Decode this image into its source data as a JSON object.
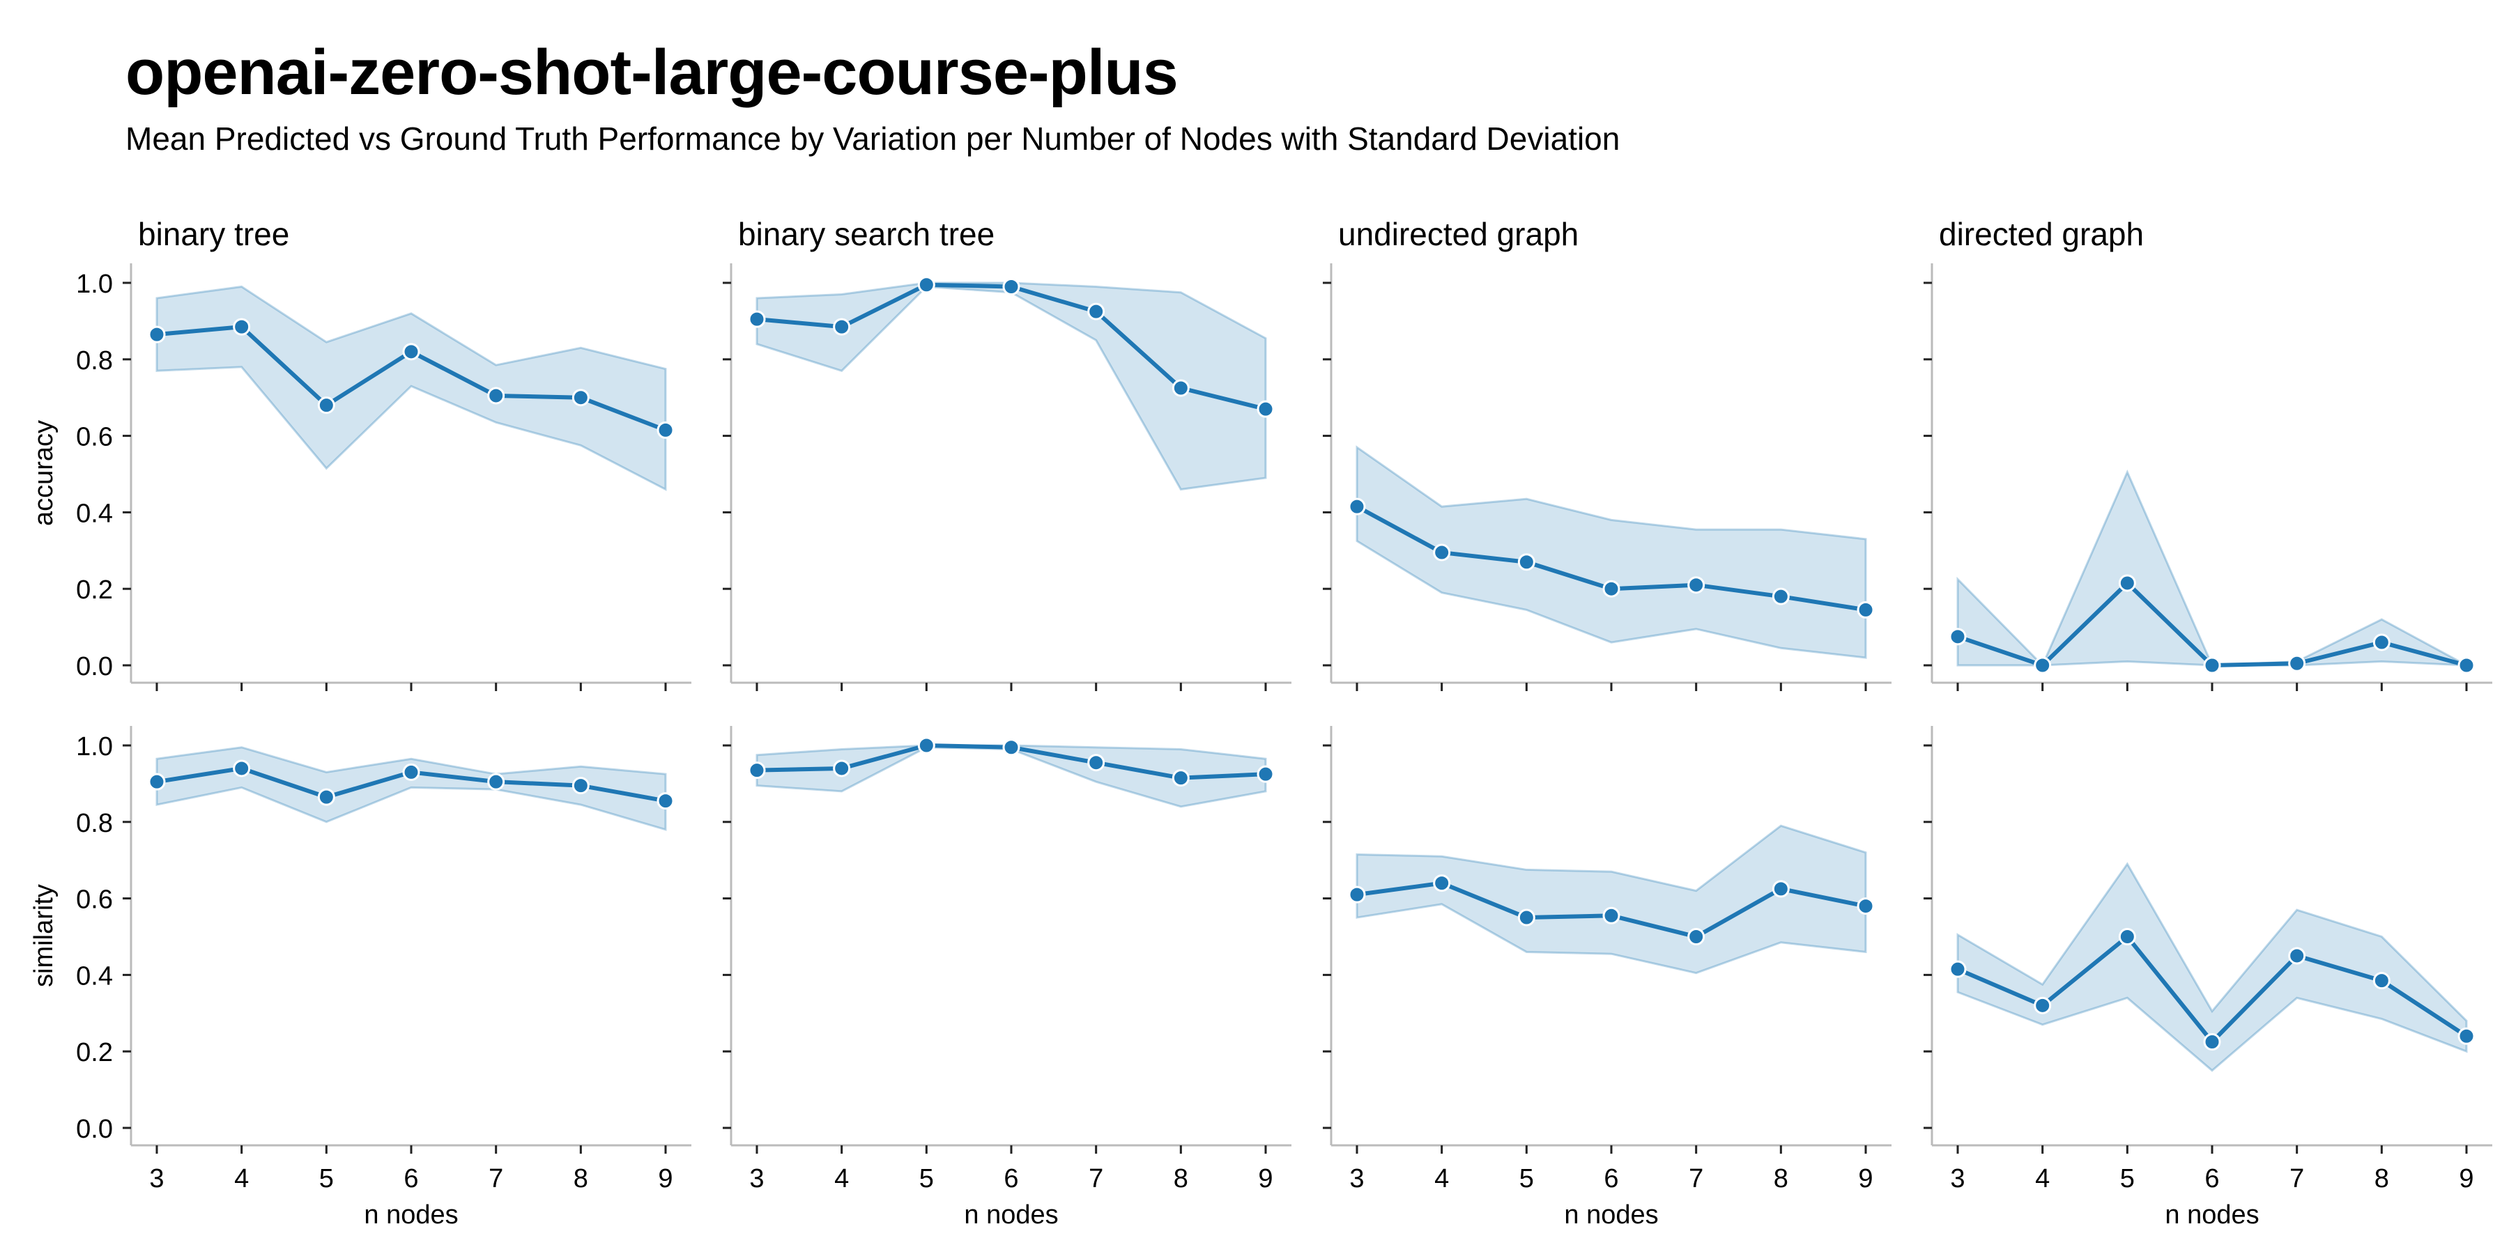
{
  "title": "openai-zero-shot-large-course-plus",
  "subtitle": "Mean Predicted vs Ground Truth Performance by Variation per Number of Nodes with Standard Deviation",
  "colors": {
    "line": "#1f77b4",
    "band": "#1f77b4",
    "axis": "#bbbbbb"
  },
  "chart_data": {
    "type": "line",
    "xlabel": "n nodes",
    "x": [
      3,
      4,
      5,
      6,
      7,
      8,
      9
    ],
    "xticks": [
      "3",
      "4",
      "5",
      "6",
      "7",
      "8",
      "9"
    ],
    "ylim": [
      0,
      1
    ],
    "yticks": [
      "0.0",
      "0.2",
      "0.4",
      "0.6",
      "0.8",
      "1.0"
    ],
    "rows": [
      "accuracy",
      "similarity"
    ],
    "columns": [
      "binary tree",
      "binary search tree",
      "undirected graph",
      "directed graph"
    ],
    "grid": false,
    "facets": [
      {
        "column": "binary tree",
        "metric": "accuracy",
        "mean": [
          0.865,
          0.885,
          0.68,
          0.82,
          0.705,
          0.7,
          0.615
        ],
        "lower": [
          0.77,
          0.78,
          0.515,
          0.73,
          0.635,
          0.575,
          0.46
        ],
        "upper": [
          0.96,
          0.99,
          0.845,
          0.92,
          0.785,
          0.83,
          0.775
        ]
      },
      {
        "column": "binary search tree",
        "metric": "accuracy",
        "mean": [
          0.905,
          0.885,
          0.995,
          0.99,
          0.925,
          0.725,
          0.67
        ],
        "lower": [
          0.84,
          0.77,
          0.99,
          0.975,
          0.85,
          0.46,
          0.49
        ],
        "upper": [
          0.96,
          0.97,
          1.0,
          1.0,
          0.99,
          0.975,
          0.855
        ]
      },
      {
        "column": "undirected graph",
        "metric": "accuracy",
        "mean": [
          0.415,
          0.295,
          0.27,
          0.2,
          0.21,
          0.18,
          0.145
        ],
        "lower": [
          0.325,
          0.19,
          0.145,
          0.06,
          0.095,
          0.045,
          0.02
        ],
        "upper": [
          0.57,
          0.415,
          0.435,
          0.38,
          0.355,
          0.355,
          0.33
        ]
      },
      {
        "column": "directed graph",
        "metric": "accuracy",
        "mean": [
          0.075,
          0.0,
          0.215,
          0.0,
          0.005,
          0.06,
          0.0
        ],
        "lower": [
          0.0,
          0.0,
          0.01,
          0.0,
          0.0,
          0.01,
          0.0
        ],
        "upper": [
          0.225,
          0.0,
          0.505,
          0.0,
          0.01,
          0.12,
          0.0
        ]
      },
      {
        "column": "binary tree",
        "metric": "similarity",
        "mean": [
          0.905,
          0.94,
          0.865,
          0.93,
          0.905,
          0.895,
          0.855
        ],
        "lower": [
          0.845,
          0.89,
          0.8,
          0.89,
          0.885,
          0.845,
          0.78
        ],
        "upper": [
          0.965,
          0.995,
          0.93,
          0.965,
          0.925,
          0.945,
          0.925
        ]
      },
      {
        "column": "binary search tree",
        "metric": "similarity",
        "mean": [
          0.935,
          0.94,
          1.0,
          0.995,
          0.955,
          0.915,
          0.925
        ],
        "lower": [
          0.895,
          0.88,
          0.995,
          0.99,
          0.905,
          0.84,
          0.88
        ],
        "upper": [
          0.975,
          0.99,
          1.0,
          1.0,
          0.995,
          0.99,
          0.965
        ]
      },
      {
        "column": "undirected graph",
        "metric": "similarity",
        "mean": [
          0.61,
          0.64,
          0.55,
          0.555,
          0.5,
          0.625,
          0.58
        ],
        "lower": [
          0.55,
          0.585,
          0.46,
          0.455,
          0.405,
          0.485,
          0.46
        ],
        "upper": [
          0.715,
          0.71,
          0.675,
          0.67,
          0.62,
          0.79,
          0.72
        ]
      },
      {
        "column": "directed graph",
        "metric": "similarity",
        "mean": [
          0.415,
          0.32,
          0.5,
          0.225,
          0.45,
          0.385,
          0.24
        ],
        "lower": [
          0.355,
          0.27,
          0.34,
          0.15,
          0.34,
          0.285,
          0.2
        ],
        "upper": [
          0.505,
          0.375,
          0.69,
          0.305,
          0.57,
          0.5,
          0.28
        ]
      }
    ]
  }
}
